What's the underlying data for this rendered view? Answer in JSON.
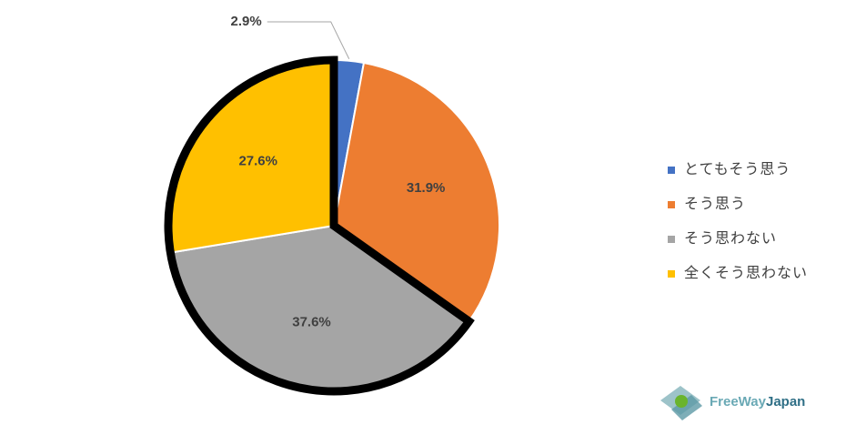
{
  "chart_data": {
    "type": "pie",
    "categories": [
      "とてもそう思う",
      "そう思う",
      "そう思わない",
      "全くそう思わない"
    ],
    "values": [
      2.9,
      31.9,
      37.6,
      27.6
    ],
    "value_labels": [
      "2.9%",
      "31.9%",
      "37.6%",
      "27.6%"
    ],
    "colors": [
      "#4472c4",
      "#ed7d31",
      "#a5a5a5",
      "#ffc000"
    ],
    "legend": "right"
  },
  "logo": [
    "FreeWay",
    "Japan"
  ]
}
